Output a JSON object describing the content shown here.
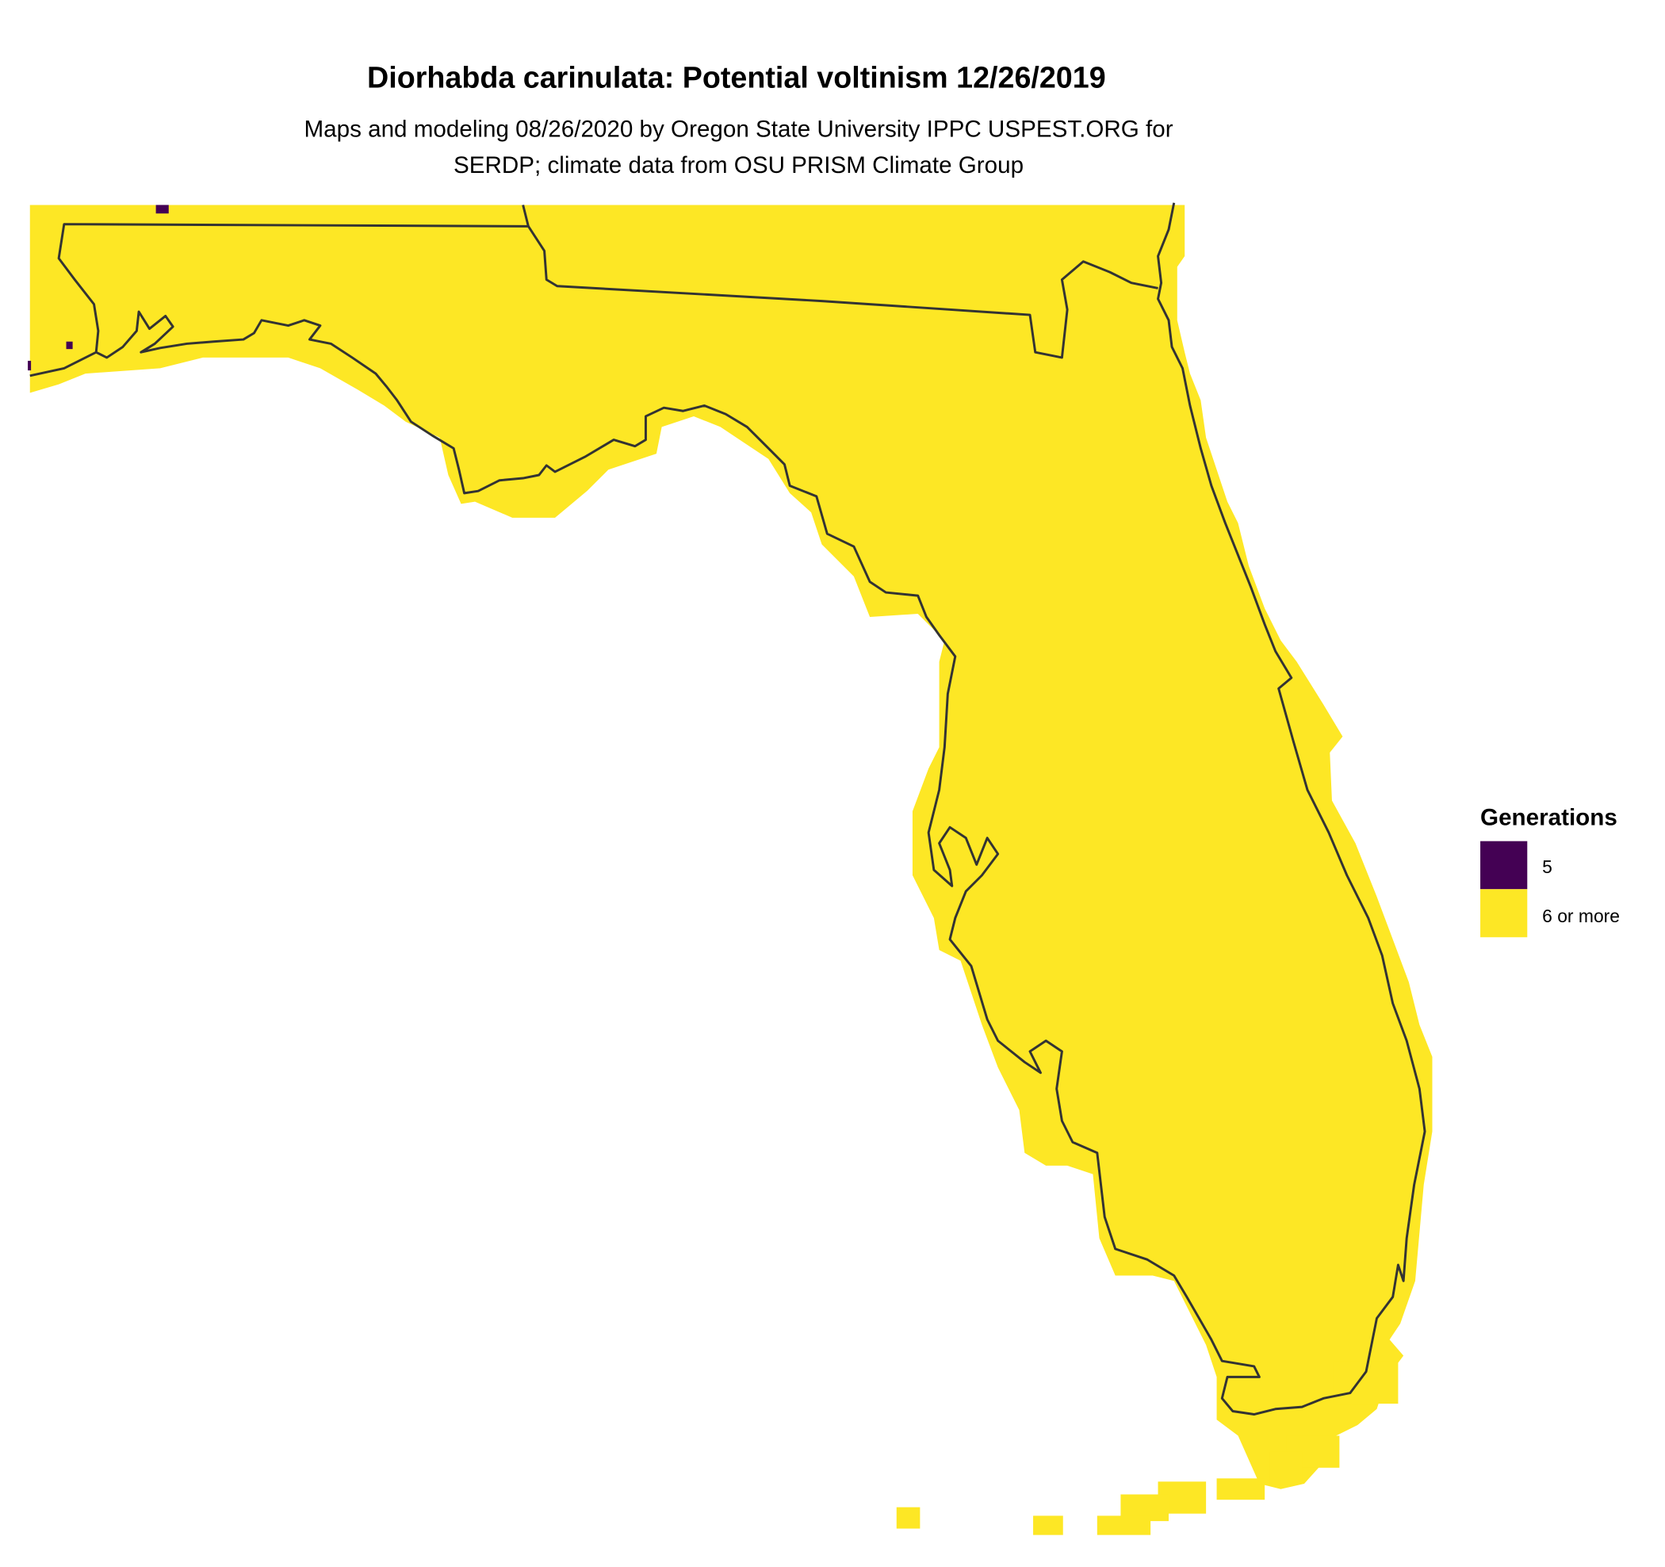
{
  "title": "Diorhabda carinulata: Potential voltinism 12/26/2019",
  "subtitle_line1": "Maps and modeling 08/26/2020 by Oregon State University IPPC USPEST.ORG for",
  "subtitle_line2": "SERDP; climate data from OSU PRISM Climate Group",
  "legend": {
    "title": "Generations",
    "items": [
      {
        "label": "5",
        "color": "#440154"
      },
      {
        "label": "6 or more",
        "color": "#FDE725"
      }
    ]
  },
  "map": {
    "region": "Florida",
    "fill_color": "#FDE725",
    "outline_color": "#333333"
  }
}
